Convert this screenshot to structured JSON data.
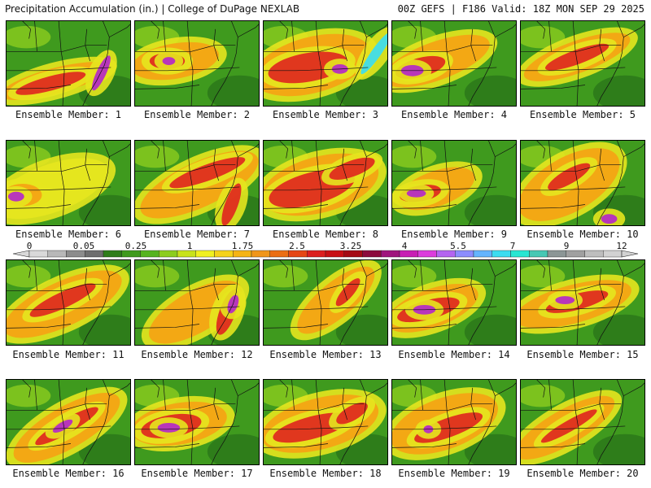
{
  "header": {
    "title_left": "Precipitation Accumulation (in.) | College of DuPage NEXLAB",
    "title_right": "00Z GEFS | F186 Valid: 18Z MON SEP 29 2025"
  },
  "panel_label_prefix": "Ensemble Member: ",
  "members": [
    {
      "number": 1,
      "label": "Ensemble Member: 1"
    },
    {
      "number": 2,
      "label": "Ensemble Member: 2"
    },
    {
      "number": 3,
      "label": "Ensemble Member: 3"
    },
    {
      "number": 4,
      "label": "Ensemble Member: 4"
    },
    {
      "number": 5,
      "label": "Ensemble Member: 5"
    },
    {
      "number": 6,
      "label": "Ensemble Member: 6"
    },
    {
      "number": 7,
      "label": "Ensemble Member: 7"
    },
    {
      "number": 8,
      "label": "Ensemble Member: 8"
    },
    {
      "number": 9,
      "label": "Ensemble Member: 9"
    },
    {
      "number": 10,
      "label": "Ensemble Member: 10"
    },
    {
      "number": 11,
      "label": "Ensemble Member: 11"
    },
    {
      "number": 12,
      "label": "Ensemble Member: 12"
    },
    {
      "number": 13,
      "label": "Ensemble Member: 13"
    },
    {
      "number": 14,
      "label": "Ensemble Member: 14"
    },
    {
      "number": 15,
      "label": "Ensemble Member: 15"
    },
    {
      "number": 16,
      "label": "Ensemble Member: 16"
    },
    {
      "number": 17,
      "label": "Ensemble Member: 17"
    },
    {
      "number": 18,
      "label": "Ensemble Member: 18"
    },
    {
      "number": 19,
      "label": "Ensemble Member: 19"
    },
    {
      "number": 20,
      "label": "Ensemble Member: 20"
    }
  ],
  "colorbar": {
    "unit": "in.",
    "tick_labels": [
      "0",
      "0.05",
      "0.25",
      "1",
      "1.75",
      "2.5",
      "3.25",
      "4",
      "5.5",
      "7",
      "9",
      "12"
    ],
    "colors": [
      "#d9d9d9",
      "#b8b8b8",
      "#8c8c8c",
      "#6e6e6e",
      "#2e7d1a",
      "#3f9a1e",
      "#56b31f",
      "#8ccd1e",
      "#c8e21b",
      "#f0f020",
      "#f5d21a",
      "#f5b414",
      "#f0961a",
      "#eb6e14",
      "#e64614",
      "#dc1e1e",
      "#c80f14",
      "#a50a14",
      "#8c0a3c",
      "#a0147d",
      "#c81eb4",
      "#dc3cdc",
      "#b464f0",
      "#8c8cff",
      "#64b4ff",
      "#3cdcf0",
      "#28e6d2",
      "#46c8b4",
      "#8c9696",
      "#a0a0a0",
      "#bebebe",
      "#d2d2d2"
    ]
  },
  "map_colors": {
    "green_dark": "#2e7d1a",
    "green": "#3f9a1e",
    "green_light": "#7cc21e",
    "yellow": "#e6e61e",
    "orange": "#f5a314",
    "red": "#e0281e",
    "dark_red": "#b4141e",
    "magenta": "#b428c8",
    "cyan": "#3cdcf0"
  }
}
